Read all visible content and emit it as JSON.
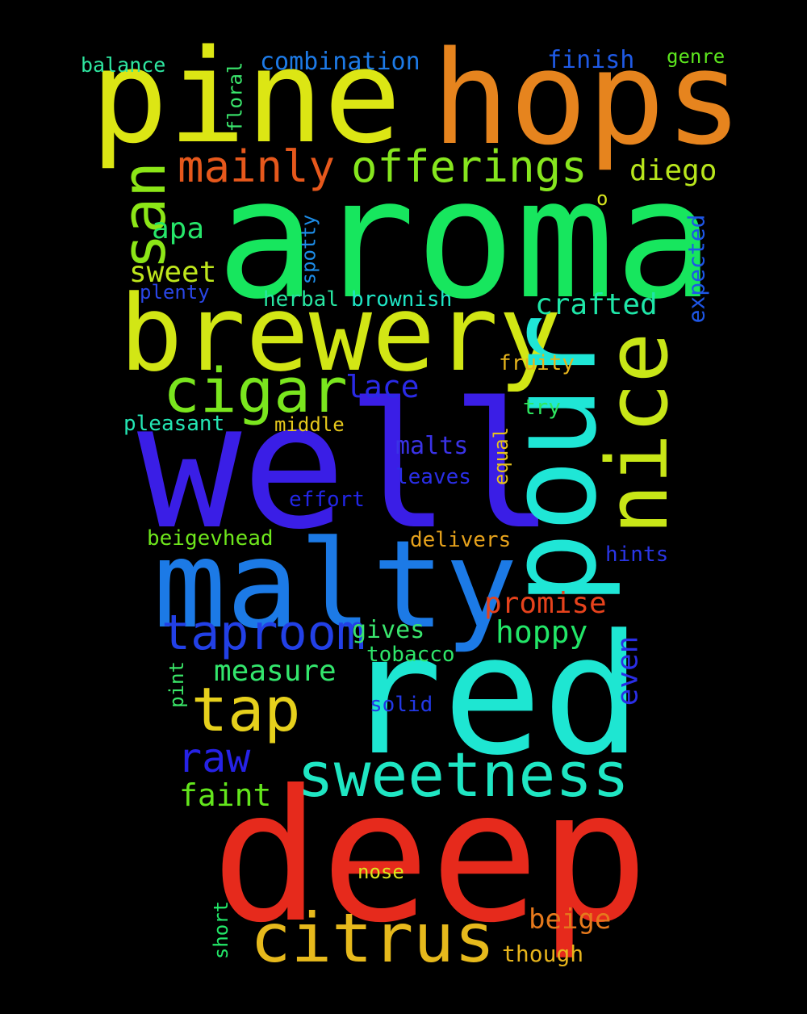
{
  "background": "#000000",
  "words": [
    {
      "id": "pine",
      "text": "pine",
      "color": "#dce614"
    },
    {
      "id": "hops",
      "text": "hops",
      "color": "#e6841e"
    },
    {
      "id": "aroma",
      "text": "aroma",
      "color": "#17e65e"
    },
    {
      "id": "brewery",
      "text": "brewery",
      "color": "#d2e615"
    },
    {
      "id": "well",
      "text": "well",
      "color": "#3a1ee6"
    },
    {
      "id": "pour",
      "text": "pour",
      "color": "#1fe6d6"
    },
    {
      "id": "nice",
      "text": "nice",
      "color": "#c8e617"
    },
    {
      "id": "malty",
      "text": "malty",
      "color": "#1c7ae6"
    },
    {
      "id": "red",
      "text": "red",
      "color": "#1ee6d2"
    },
    {
      "id": "deep",
      "text": "deep",
      "color": "#e62a1c"
    },
    {
      "id": "citrus",
      "text": "citrus",
      "color": "#e6b91c"
    },
    {
      "id": "sweetness",
      "text": "sweetness",
      "color": "#1fe6c3"
    },
    {
      "id": "cigar",
      "text": "cigar",
      "color": "#7ae61e"
    },
    {
      "id": "taproom",
      "text": "taproom",
      "color": "#2240e6"
    },
    {
      "id": "tap",
      "text": "tap",
      "color": "#e6d01c"
    },
    {
      "id": "san",
      "text": "san",
      "color": "#8ce617"
    },
    {
      "id": "mainly",
      "text": "mainly",
      "color": "#e6581c"
    },
    {
      "id": "offerings",
      "text": "offerings",
      "color": "#86e61e"
    },
    {
      "id": "diego",
      "text": "diego",
      "color": "#b8e61c"
    },
    {
      "id": "apa",
      "text": "apa",
      "color": "#26e66a"
    },
    {
      "id": "sweet",
      "text": "sweet",
      "color": "#bee61c"
    },
    {
      "id": "crafted",
      "text": "crafted",
      "color": "#1fe6a8"
    },
    {
      "id": "lace",
      "text": "lace",
      "color": "#2a2ae6"
    },
    {
      "id": "raw",
      "text": "raw",
      "color": "#2622e6"
    },
    {
      "id": "faint",
      "text": "faint",
      "color": "#63e61c"
    },
    {
      "id": "measure",
      "text": "measure",
      "color": "#33e66c"
    },
    {
      "id": "promise",
      "text": "promise",
      "color": "#e6421c"
    },
    {
      "id": "hoppy",
      "text": "hoppy",
      "color": "#22e668"
    },
    {
      "id": "beige",
      "text": "beige",
      "color": "#e6791c"
    },
    {
      "id": "combination",
      "text": "combination",
      "color": "#1d7ae6"
    },
    {
      "id": "finish",
      "text": "finish",
      "color": "#1f5ae6"
    },
    {
      "id": "balance",
      "text": "balance",
      "color": "#2ee6a0"
    },
    {
      "id": "genre",
      "text": "genre",
      "color": "#5ce61e"
    },
    {
      "id": "floral",
      "text": "floral",
      "color": "#3ae66c"
    },
    {
      "id": "spotty",
      "text": "spotty",
      "color": "#1d8ce6"
    },
    {
      "id": "expected",
      "text": "expected",
      "color": "#1e56e6"
    },
    {
      "id": "o",
      "text": "o",
      "color": "#d8e61e"
    },
    {
      "id": "plenty",
      "text": "plenty",
      "color": "#2a46e6"
    },
    {
      "id": "herbal",
      "text": "herbal",
      "color": "#28e6a2"
    },
    {
      "id": "brownish",
      "text": "brownish",
      "color": "#1fe6c6"
    },
    {
      "id": "fruity",
      "text": "fruity",
      "color": "#e6b41c"
    },
    {
      "id": "try",
      "text": "try",
      "color": "#2ee660"
    },
    {
      "id": "pleasant",
      "text": "pleasant",
      "color": "#24e6b4"
    },
    {
      "id": "middle",
      "text": "middle",
      "color": "#e6c81c"
    },
    {
      "id": "malts",
      "text": "malts",
      "color": "#3a32e6"
    },
    {
      "id": "equal",
      "text": "equal",
      "color": "#e6c21c"
    },
    {
      "id": "leaves",
      "text": "leaves",
      "color": "#2a2ee6"
    },
    {
      "id": "effort",
      "text": "effort",
      "color": "#2226e6"
    },
    {
      "id": "beigevhead",
      "text": "beigevhead",
      "color": "#6ee61c"
    },
    {
      "id": "delivers",
      "text": "delivers",
      "color": "#e6a21c"
    },
    {
      "id": "hints",
      "text": "hints",
      "color": "#2a36e6"
    },
    {
      "id": "gives",
      "text": "gives",
      "color": "#3ae66e"
    },
    {
      "id": "tobacco",
      "text": "tobacco",
      "color": "#2ee66a"
    },
    {
      "id": "even",
      "text": "even",
      "color": "#2a2ee6"
    },
    {
      "id": "pint",
      "text": "pint",
      "color": "#3ae668"
    },
    {
      "id": "solid",
      "text": "solid",
      "color": "#2238e6"
    },
    {
      "id": "nose",
      "text": "nose",
      "color": "#dce61c"
    },
    {
      "id": "short",
      "text": "short",
      "color": "#22e668"
    },
    {
      "id": "though",
      "text": "though",
      "color": "#e6b41c"
    }
  ]
}
